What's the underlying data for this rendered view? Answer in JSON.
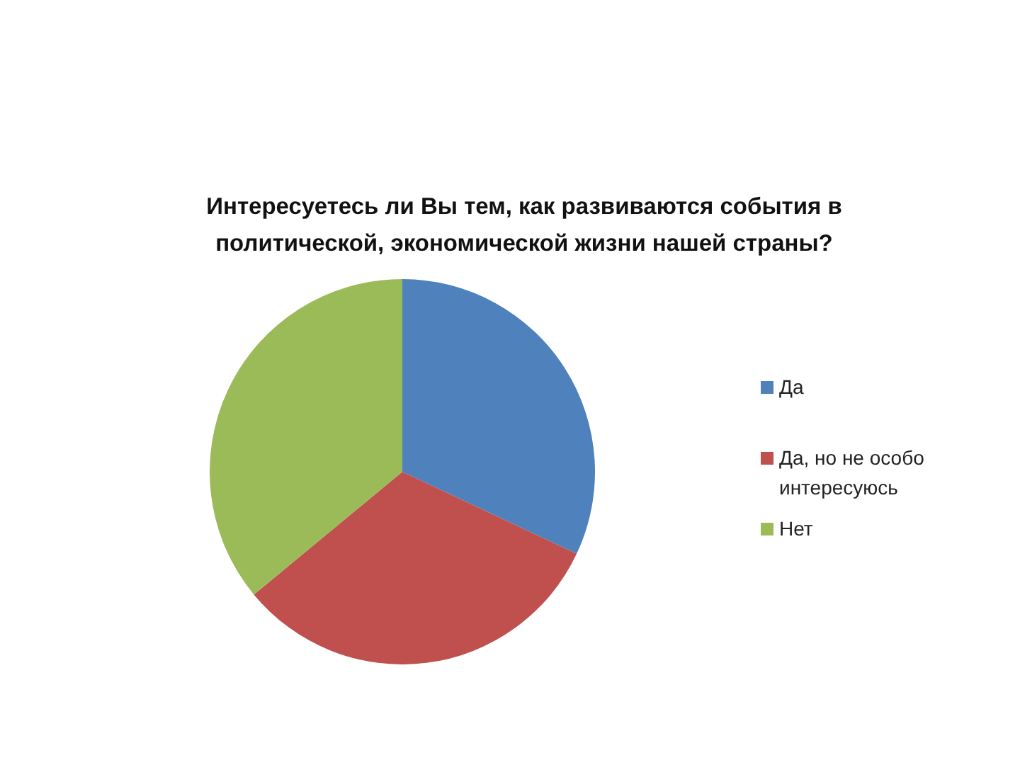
{
  "chart_data": {
    "type": "pie",
    "title": "Интересуетесь ли Вы тем, как развиваются события в политической, экономической жизни нашей страны?",
    "categories": [
      "Да",
      "Да, но не особо интересуюсь",
      "Нет"
    ],
    "values": [
      32,
      32,
      36
    ],
    "colors": [
      "#4f81bd",
      "#c0504d",
      "#9bbb59"
    ],
    "legend": "right"
  }
}
